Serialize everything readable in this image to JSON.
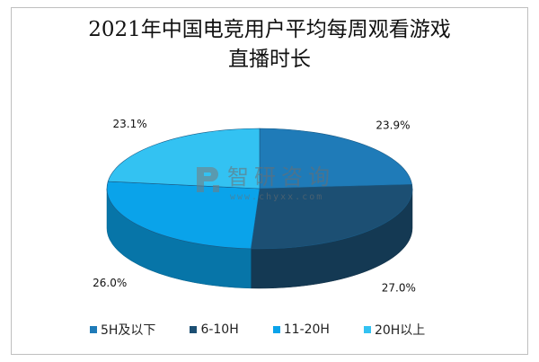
{
  "title_line1": "2021年中国电竞用户平均每周观看游戏",
  "title_line2": "直播时长",
  "watermark": {
    "brand": "智研咨询",
    "url": "www.chyxx.com"
  },
  "colors": {
    "s1": "#1f7bb8",
    "s2": "#1c4f73",
    "s3": "#0aa3ea",
    "s4": "#33c2f2"
  },
  "chart_data": {
    "type": "pie",
    "categories": [
      "5H及以下",
      "6-10H",
      "11-20H",
      "20H以上"
    ],
    "values": [
      23.9,
      27.0,
      26.0,
      23.1
    ],
    "labels": [
      "23.9%",
      "27.0%",
      "26.0%",
      "23.1%"
    ],
    "legend_position": "bottom"
  }
}
